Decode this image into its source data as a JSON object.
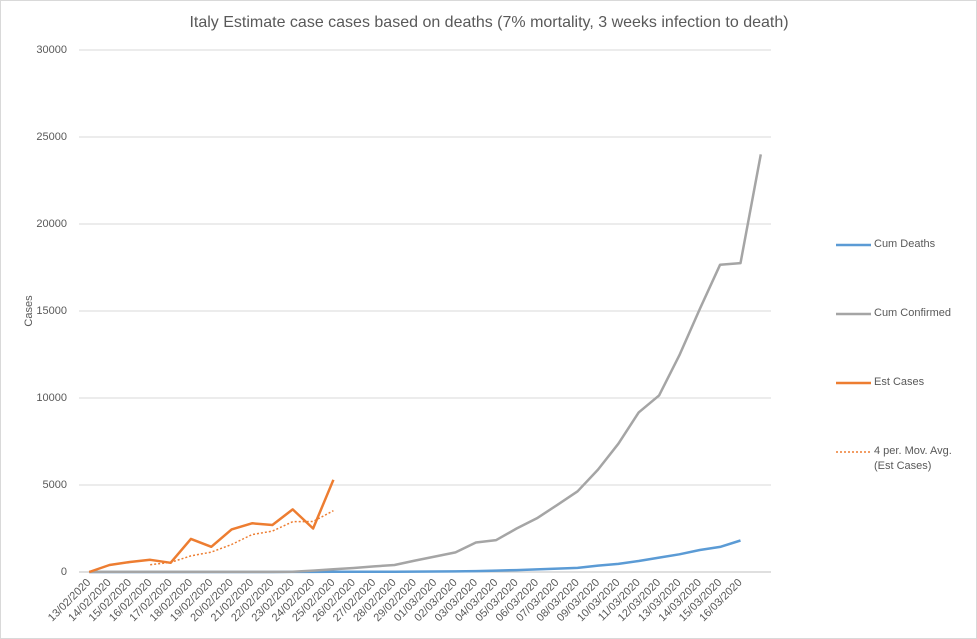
{
  "chart_data": {
    "type": "line",
    "title": "Italy Estimate case cases based on deaths (7% mortality, 3 weeks infection to death)",
    "y_label": "Cases",
    "categories": [
      "13/02/2020",
      "14/02/2020",
      "15/02/2020",
      "16/02/2020",
      "17/02/2020",
      "18/02/2020",
      "19/02/2020",
      "20/02/2020",
      "21/02/2020",
      "22/02/2020",
      "23/02/2020",
      "24/02/2020",
      "25/02/2020",
      "26/02/2020",
      "27/02/2020",
      "28/02/2020",
      "29/02/2020",
      "01/03/2020",
      "02/03/2020",
      "03/03/2020",
      "04/03/2020",
      "05/03/2020",
      "06/03/2020",
      "07/03/2020",
      "08/03/2020",
      "09/03/2020",
      "10/03/2020",
      "11/03/2020",
      "12/03/2020",
      "13/03/2020",
      "14/03/2020",
      "15/03/2020",
      "16/03/2020",
      null
    ],
    "series": [
      {
        "name": "Cum Deaths",
        "color": "#5b9bd5",
        "dash": false,
        "values": [
          0,
          0,
          0,
          0,
          0,
          0,
          0,
          0,
          1,
          2,
          3,
          7,
          10,
          12,
          12,
          17,
          21,
          29,
          34,
          52,
          79,
          107,
          148,
          197,
          233,
          366,
          463,
          631,
          827,
          1016,
          1266,
          1441,
          1809,
          null
        ]
      },
      {
        "name": "Cum Confirmed",
        "color": "#a5a5a5",
        "dash": false,
        "values": [
          3,
          3,
          3,
          3,
          3,
          3,
          3,
          3,
          3,
          3,
          20,
          79,
          155,
          229,
          322,
          400,
          655,
          888,
          1128,
          1694,
          1835,
          2502,
          3089,
          3858,
          4636,
          5883,
          7375,
          9172,
          10149,
          12462,
          15113,
          17660,
          17750,
          24000
        ]
      },
      {
        "name": "Est Cases",
        "color": "#ed7d31",
        "dash": false,
        "values": [
          0,
          400,
          575,
          700,
          530,
          1900,
          1450,
          2450,
          2800,
          2700,
          3600,
          2500,
          5300,
          null,
          null,
          null,
          null,
          null,
          null,
          null,
          null,
          null,
          null,
          null,
          null,
          null,
          null,
          null,
          null,
          null,
          null,
          null,
          null,
          null
        ]
      },
      {
        "name": "4 per. Mov. Avg. (Est Cases)",
        "color": "#ed7d31",
        "dash": true,
        "values": [
          null,
          null,
          null,
          419,
          551,
          926,
          1145,
          1583,
          2150,
          2350,
          2888,
          2900,
          3525,
          null,
          null,
          null,
          null,
          null,
          null,
          null,
          null,
          null,
          null,
          null,
          null,
          null,
          null,
          null,
          null,
          null,
          null,
          null,
          null,
          null
        ]
      }
    ],
    "ylim": [
      0,
      30000
    ],
    "yticks": [
      0,
      5000,
      10000,
      15000,
      20000,
      25000,
      30000
    ],
    "grid": true,
    "legend": "right"
  }
}
